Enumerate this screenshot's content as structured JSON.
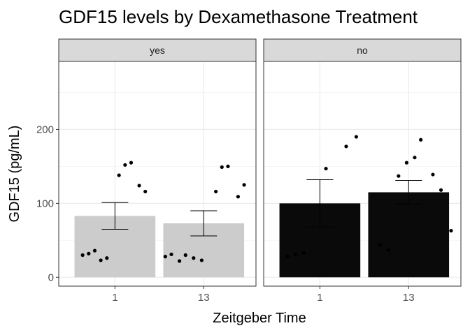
{
  "chart_data": {
    "type": "bar",
    "title": "GDF15 levels by Dexamethasone Treatment",
    "xlabel": "Zeitgeber Time",
    "ylabel": "GDF15 (pg/mL)",
    "categories": [
      "1",
      "13"
    ],
    "ylim": [
      -12,
      292
    ],
    "yticks": [
      0,
      100,
      200
    ],
    "grid": true,
    "panels": [
      {
        "label": "yes",
        "fill": "#cccccc",
        "bars": [
          {
            "category": "1",
            "mean": 83,
            "error_low": 65,
            "error_high": 101,
            "points": [
              [
                0.68,
                30
              ],
              [
                0.74,
                32
              ],
              [
                0.8,
                36
              ],
              [
                0.86,
                23
              ],
              [
                0.92,
                26
              ],
              [
                1.04,
                138
              ],
              [
                1.1,
                152
              ],
              [
                1.16,
                155
              ],
              [
                1.24,
                124
              ],
              [
                1.3,
                116
              ]
            ]
          },
          {
            "category": "13",
            "mean": 73,
            "error_low": 56,
            "error_high": 90,
            "points": [
              [
                12.62,
                28
              ],
              [
                12.68,
                31
              ],
              [
                12.76,
                22
              ],
              [
                12.82,
                30
              ],
              [
                12.9,
                26
              ],
              [
                12.98,
                23
              ],
              [
                13.12,
                116
              ],
              [
                13.18,
                149
              ],
              [
                13.24,
                150
              ],
              [
                13.34,
                109
              ],
              [
                13.4,
                125
              ]
            ]
          }
        ]
      },
      {
        "label": "no",
        "fill": "#0a0a0a",
        "bars": [
          {
            "category": "1",
            "mean": 100,
            "error_low": 68,
            "error_high": 132,
            "points": [
              [
                0.68,
                28
              ],
              [
                0.76,
                31
              ],
              [
                0.84,
                33
              ],
              [
                1.06,
                147
              ],
              [
                1.26,
                177
              ],
              [
                1.36,
                190
              ]
            ]
          },
          {
            "category": "13",
            "mean": 115,
            "error_low": 99,
            "error_high": 131,
            "points": [
              [
                12.72,
                44
              ],
              [
                12.8,
                37
              ],
              [
                12.9,
                137
              ],
              [
                12.98,
                155
              ],
              [
                13.06,
                162
              ],
              [
                13.12,
                186
              ],
              [
                13.24,
                139
              ],
              [
                13.32,
                118
              ],
              [
                13.42,
                63
              ]
            ]
          }
        ]
      }
    ]
  }
}
